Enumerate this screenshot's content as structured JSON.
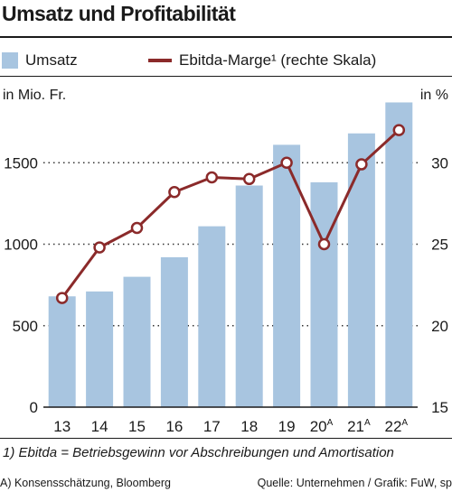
{
  "colors": {
    "bar": "#a8c5e0",
    "line": "#8b2a2a",
    "text": "#1a1a1a"
  },
  "title": "Umsatz und Profitabilität",
  "legend": {
    "bar_label": "Umsatz",
    "line_label": "Ebitda-Marge¹ (rechte  Skala)"
  },
  "unit_left": "in Mio. Fr.",
  "unit_right": "in %",
  "footnote": "1) Ebitda = Betriebsgewinn vor Abschreibungen und Amortisation",
  "source_left": "A) Konsensschätzung, Bloomberg",
  "source_right": "Quelle: Unternehmen / Grafik: FuW, sp",
  "chart_data": {
    "type": "bar",
    "title": "Umsatz und Profitabilität",
    "categories": [
      "13",
      "14",
      "15",
      "16",
      "17",
      "18",
      "19",
      "20",
      "21",
      "22"
    ],
    "category_superscripts": [
      "",
      "",
      "",
      "",
      "",
      "",
      "",
      "A",
      "A",
      "A"
    ],
    "series": [
      {
        "name": "Umsatz",
        "type": "bar",
        "axis": "left",
        "values": [
          680,
          710,
          800,
          920,
          1110,
          1360,
          1610,
          1380,
          1680,
          1870
        ]
      },
      {
        "name": "Ebitda-Marge¹ (rechte  Skala)",
        "type": "line",
        "axis": "right",
        "values": [
          21.7,
          24.8,
          26.0,
          28.2,
          29.1,
          29.0,
          30.0,
          25.0,
          29.9,
          32.0
        ]
      }
    ],
    "ylabel": "in Mio. Fr.",
    "ylim": [
      0,
      2000
    ],
    "yticks": [
      0,
      500,
      1000,
      1500
    ],
    "ylabel_right": "in %",
    "ylim_right": [
      15,
      35
    ],
    "yticks_right": [
      15,
      20,
      25,
      30
    ],
    "grid": "dotted-horizontal",
    "legend_position": "top"
  }
}
